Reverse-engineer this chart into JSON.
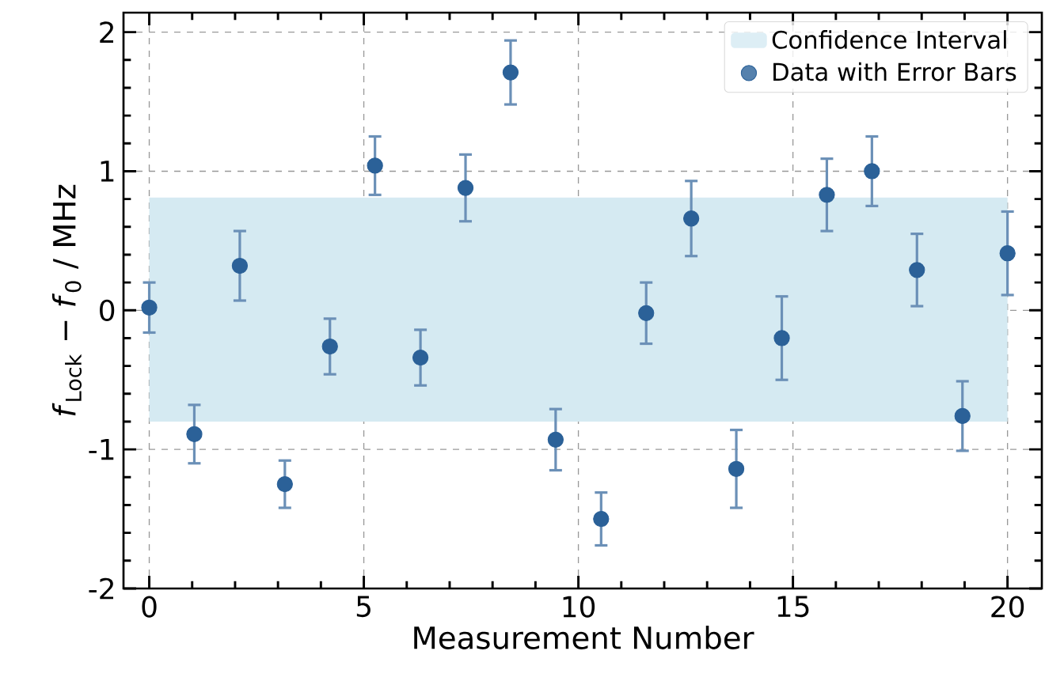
{
  "chart_data": {
    "type": "scatter",
    "xlabel": "Measurement Number",
    "ylabel": "*f*$_{Lock}$ − *f*$_{0}$ / MHz",
    "x": [
      0,
      1.05,
      2.11,
      3.16,
      4.21,
      5.26,
      6.32,
      7.37,
      8.42,
      9.47,
      10.53,
      11.58,
      12.63,
      13.68,
      14.74,
      15.79,
      16.84,
      17.89,
      18.95,
      20
    ],
    "series": [
      {
        "name": "Data with Error Bars",
        "color": "#2b6198",
        "values": [
          0.02,
          -0.89,
          0.32,
          -1.25,
          -0.26,
          1.04,
          -0.34,
          0.88,
          1.71,
          -0.93,
          -1.5,
          -0.02,
          0.66,
          -1.14,
          -0.2,
          0.83,
          1.0,
          0.29,
          -0.76,
          0.41
        ],
        "errors": [
          0.18,
          0.21,
          0.25,
          0.17,
          0.2,
          0.21,
          0.2,
          0.24,
          0.23,
          0.22,
          0.19,
          0.22,
          0.27,
          0.28,
          0.3,
          0.26,
          0.25,
          0.26,
          0.25,
          0.3
        ]
      }
    ],
    "bands": [
      {
        "axis": "y",
        "from": -0.8,
        "to": 0.81,
        "label": "Confidence Interval",
        "color": "#d5eaf2"
      }
    ],
    "xlim": [
      -0.6,
      20.8
    ],
    "ylim": [
      -2,
      2.14
    ],
    "xticks": [
      0,
      5,
      10,
      15,
      20
    ],
    "yticks": [
      -2,
      -1,
      0,
      1,
      2
    ],
    "grid": true,
    "legend": "top right",
    "marker": "circle"
  }
}
